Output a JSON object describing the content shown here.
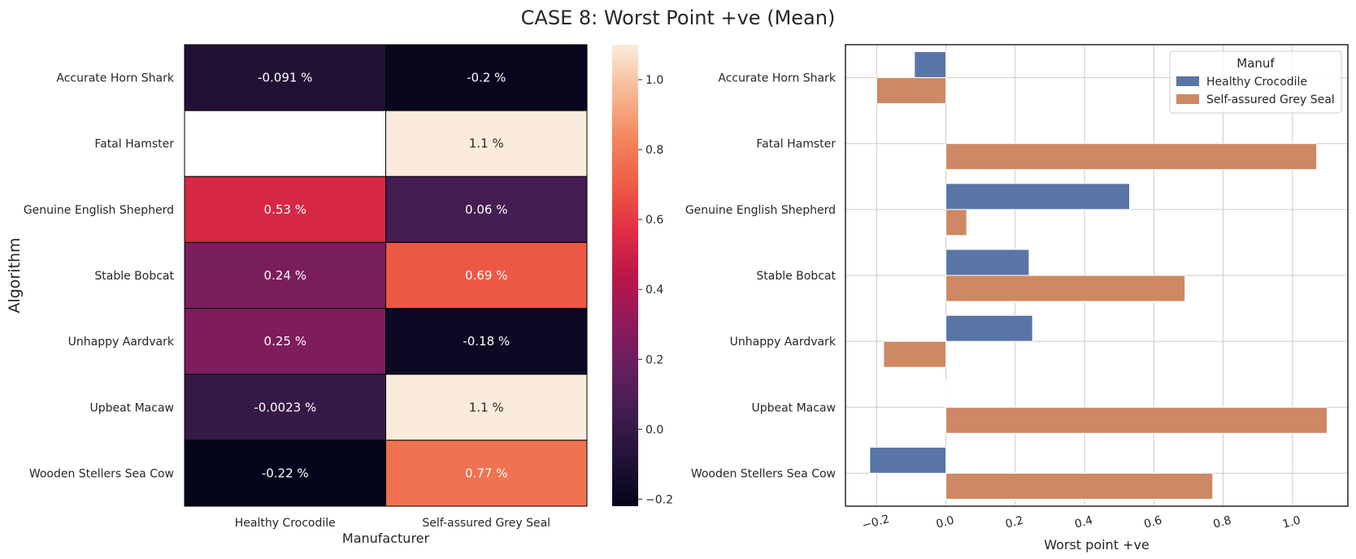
{
  "figure": {
    "title": "CASE 8: Worst Point +ve (Mean)"
  },
  "chart_data": [
    {
      "type": "heatmap",
      "rows": [
        "Accurate Horn Shark",
        "Fatal Hamster",
        "Genuine English Shepherd",
        "Stable Bobcat",
        "Unhappy Aardvark",
        "Upbeat Macaw",
        "Wooden Stellers Sea Cow"
      ],
      "columns": [
        "Healthy Crocodile",
        "Self-assured Grey Seal"
      ],
      "values": [
        [
          -0.091,
          -0.2
        ],
        [
          null,
          1.1
        ],
        [
          0.53,
          0.06
        ],
        [
          0.24,
          0.69
        ],
        [
          0.25,
          -0.18
        ],
        [
          -0.0023,
          1.1
        ],
        [
          -0.22,
          0.77
        ]
      ],
      "cell_labels": [
        [
          "-0.091 %",
          "-0.2 %"
        ],
        [
          "",
          "1.1 %"
        ],
        [
          "0.53 %",
          "0.06 %"
        ],
        [
          "0.24 %",
          "0.69 %"
        ],
        [
          "0.25 %",
          "-0.18 %"
        ],
        [
          "-0.0023 %",
          "1.1 %"
        ],
        [
          "-0.22 %",
          "0.77 %"
        ]
      ],
      "xlabel": "Manufacturer",
      "ylabel": "Algorithm",
      "colorbar": {
        "range": [
          -0.22,
          1.1
        ],
        "ticks": [
          -0.2,
          0.0,
          0.2,
          0.4,
          0.6,
          0.8,
          1.0
        ],
        "tick_labels": [
          "−0.2",
          "0.0",
          "0.2",
          "0.4",
          "0.6",
          "0.8",
          "1.0"
        ],
        "colormap": "rocket"
      }
    },
    {
      "type": "bar",
      "orientation": "horizontal",
      "categories": [
        "Accurate Horn Shark",
        "Fatal Hamster",
        "Genuine English Shepherd",
        "Stable Bobcat",
        "Unhappy Aardvark",
        "Upbeat Macaw",
        "Wooden Stellers Sea Cow"
      ],
      "series": [
        {
          "name": "Healthy Crocodile",
          "color": "#5875a6",
          "values": [
            -0.091,
            null,
            0.53,
            0.24,
            0.25,
            -0.0023,
            -0.22
          ]
        },
        {
          "name": "Self-assured Grey Seal",
          "color": "#cc8963",
          "values": [
            -0.2,
            1.07,
            0.06,
            0.69,
            -0.18,
            1.1,
            0.77
          ]
        }
      ],
      "xlabel": "Worst point +ve",
      "ylabel": "",
      "xlim": [
        -0.29,
        1.16
      ],
      "xticks": [
        -0.2,
        0.0,
        0.2,
        0.4,
        0.6,
        0.8,
        1.0
      ],
      "xtick_labels": [
        "−0.2",
        "0.0",
        "0.2",
        "0.4",
        "0.6",
        "0.8",
        "1.0"
      ],
      "grid": true,
      "legend": {
        "title": "Manuf",
        "placement": "top-right"
      }
    }
  ]
}
